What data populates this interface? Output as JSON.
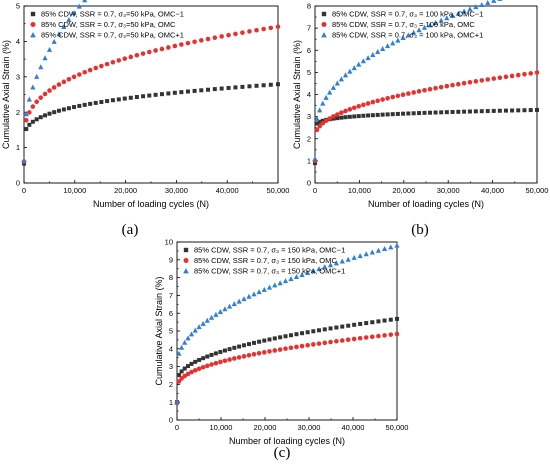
{
  "chart_data": [
    {
      "type": "scatter",
      "panel_label": "(a)",
      "xlabel": "Number of loading cycles (N)",
      "ylabel": "Cumulative Axial Strain (%)",
      "xlim": [
        0,
        50000
      ],
      "ylim": [
        0,
        5
      ],
      "xticks": [
        0,
        10000,
        20000,
        30000,
        40000,
        50000
      ],
      "xtick_labels": [
        "0",
        "10,000",
        "20,000",
        "30,000",
        "40,000",
        "50,000"
      ],
      "yticks": [
        0,
        1,
        2,
        3,
        4,
        5
      ],
      "ytick_labels": [
        "0",
        "1",
        "2",
        "3",
        "4",
        "5"
      ],
      "grid": false,
      "legend_position": "top-left",
      "series": [
        {
          "name": "85% CDW, SSR = 0.7, σ₃=50 kPa, OMC−1",
          "marker": "square",
          "color": "#333333",
          "start": 0.55,
          "base": 1.12,
          "A": 0.065,
          "p": 0.3
        },
        {
          "name": "85% CDW, SSR = 0.7, σ₃=50 kPa, OMC",
          "marker": "circle",
          "color": "#e8312e",
          "start": 0.6,
          "base": 1.15,
          "A": 0.074,
          "p": 0.35
        },
        {
          "name": "85% CDW, SSR = 0.7, σ₃=50 kPa, OMC+1",
          "marker": "triangle",
          "color": "#2f7fd8",
          "start": 0.65,
          "base": 1.18,
          "A": 0.0365,
          "p": 0.5
        }
      ]
    },
    {
      "type": "scatter",
      "panel_label": "(b)",
      "xlabel": "Number of loading cycles (N)",
      "ylabel": "Cumulative Axial Strain (%)",
      "xlim": [
        0,
        50000
      ],
      "ylim": [
        0,
        8
      ],
      "xticks": [
        0,
        10000,
        20000,
        30000,
        40000,
        50000
      ],
      "xtick_labels": [
        "0",
        "10,000",
        "20,000",
        "30,000",
        "40,000",
        "50,000"
      ],
      "yticks": [
        0,
        1,
        2,
        3,
        4,
        5,
        6,
        7,
        8
      ],
      "ytick_labels": [
        "0",
        "1",
        "2",
        "3",
        "4",
        "5",
        "6",
        "7",
        "8"
      ],
      "grid": false,
      "legend_position": "top-left",
      "series": [
        {
          "name": "85% CDW, SSR = 0.7, σ₃ = 100 kPa, OMC−1",
          "marker": "square",
          "color": "#333333",
          "start": 0.9,
          "base": 2.3,
          "A": 0.115,
          "p": 0.2
        },
        {
          "name": "85% CDW, SSR = 0.7, σ₃ = 100 kPa, OMC",
          "marker": "circle",
          "color": "#e8312e",
          "start": 1.0,
          "base": 2.05,
          "A": 0.0226,
          "p": 0.45
        },
        {
          "name": "85% CDW, SSR = 0.7, σ₃ = 100 kPa, OMC+1",
          "marker": "triangle",
          "color": "#2f7fd8",
          "start": 1.1,
          "base": 2.1,
          "A": 0.052,
          "p": 0.45
        }
      ]
    },
    {
      "type": "scatter",
      "panel_label": "(c)",
      "xlabel": "Number of loading cycles (N)",
      "ylabel": "Cumulative Axial Strain (%)",
      "xlim": [
        0,
        50000
      ],
      "ylim": [
        0,
        10
      ],
      "xticks": [
        0,
        10000,
        20000,
        30000,
        40000,
        50000
      ],
      "xtick_labels": [
        "0",
        "10,000",
        "20,000",
        "30,000",
        "40,000",
        "50,000"
      ],
      "yticks": [
        0,
        1,
        2,
        3,
        4,
        5,
        6,
        7,
        8,
        9,
        10
      ],
      "ytick_labels": [
        "0",
        "1",
        "2",
        "3",
        "4",
        "5",
        "6",
        "7",
        "8",
        "9",
        "10"
      ],
      "grid": false,
      "legend_position": "top-left",
      "series": [
        {
          "name": "85% CDW, SSR = 0.7, σ₃ = 150 kPa, OMC−1",
          "marker": "square",
          "color": "#333333",
          "start": 1.0,
          "base": 2.1,
          "A": 0.0275,
          "p": 0.45
        },
        {
          "name": "85% CDW, SSR = 0.7, σ₃ = 150 kPa, OMC",
          "marker": "circle",
          "color": "#e8312e",
          "start": 0.95,
          "base": 1.8,
          "A": 0.0233,
          "p": 0.45
        },
        {
          "name": "85% CDW, SSR = 0.7, σ₃ = 150 kPa, OMC+1",
          "marker": "triangle",
          "color": "#2f7fd8",
          "start": 1.0,
          "base": 3.1,
          "A": 0.03,
          "p": 0.5
        }
      ]
    }
  ]
}
